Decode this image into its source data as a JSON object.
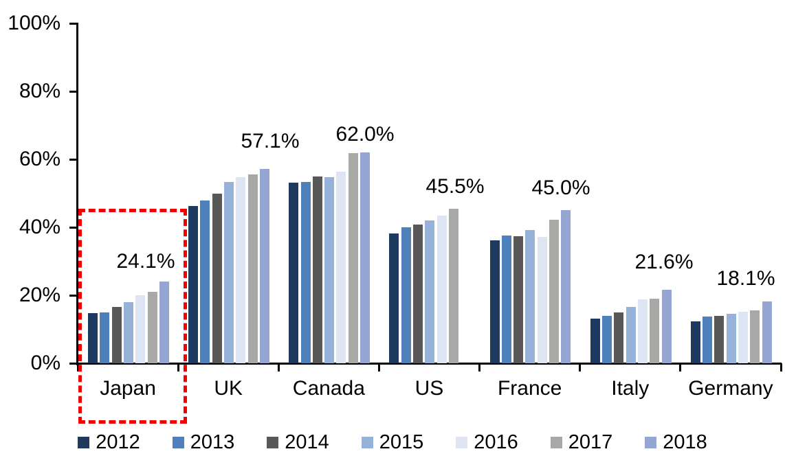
{
  "chart_data": {
    "type": "bar",
    "title": "",
    "xlabel": "",
    "ylabel": "",
    "ylim": [
      0,
      100
    ],
    "yticks": [
      "0%",
      "20%",
      "40%",
      "60%",
      "80%",
      "100%"
    ],
    "grid": false,
    "legend_position": "bottom",
    "categories": [
      "Japan",
      "UK",
      "Canada",
      "US",
      "France",
      "Italy",
      "Germany"
    ],
    "series": [
      {
        "name": "2012",
        "color": "#1e3a5f",
        "values": [
          14.8,
          46.2,
          53.0,
          38.1,
          36.2,
          13.1,
          12.4
        ]
      },
      {
        "name": "2013",
        "color": "#4e80bc",
        "values": [
          15.0,
          47.8,
          53.3,
          40.0,
          37.5,
          13.9,
          13.7
        ]
      },
      {
        "name": "2014",
        "color": "#585858",
        "values": [
          16.6,
          49.8,
          54.8,
          40.8,
          37.4,
          15.0,
          14.0
        ]
      },
      {
        "name": "2015",
        "color": "#97b2d8",
        "values": [
          18.0,
          53.2,
          54.6,
          42.0,
          39.1,
          16.6,
          14.5
        ]
      },
      {
        "name": "2016",
        "color": "#dce5f1",
        "values": [
          20.0,
          54.6,
          56.3,
          43.4,
          37.2,
          18.7,
          15.1
        ]
      },
      {
        "name": "2017",
        "color": "#a8a8a6",
        "values": [
          21.0,
          55.6,
          61.7,
          45.5,
          42.2,
          18.9,
          15.6
        ]
      },
      {
        "name": "2018",
        "color": "#94a6d1",
        "values": [
          24.1,
          57.1,
          62.0,
          null,
          45.0,
          21.6,
          18.1
        ]
      }
    ],
    "value_labels": {
      "Japan": "24.1%",
      "UK": "57.1%",
      "Canada": "62.0%",
      "US": "45.5%",
      "France": "45.0%",
      "Italy": "21.6%",
      "Germany": "18.1%"
    },
    "highlight": {
      "target": "Japan",
      "shape": "dashed-rectangle",
      "color": "#f40000"
    }
  },
  "legend": {
    "items": [
      {
        "label": "2012",
        "color": "#1e3a5f"
      },
      {
        "label": "2013",
        "color": "#4e80bc"
      },
      {
        "label": "2014",
        "color": "#585858"
      },
      {
        "label": "2015",
        "color": "#97b2d8"
      },
      {
        "label": "2016",
        "color": "#dce5f1"
      },
      {
        "label": "2017",
        "color": "#a8a8a6"
      },
      {
        "label": "2018",
        "color": "#94a6d1"
      }
    ]
  }
}
